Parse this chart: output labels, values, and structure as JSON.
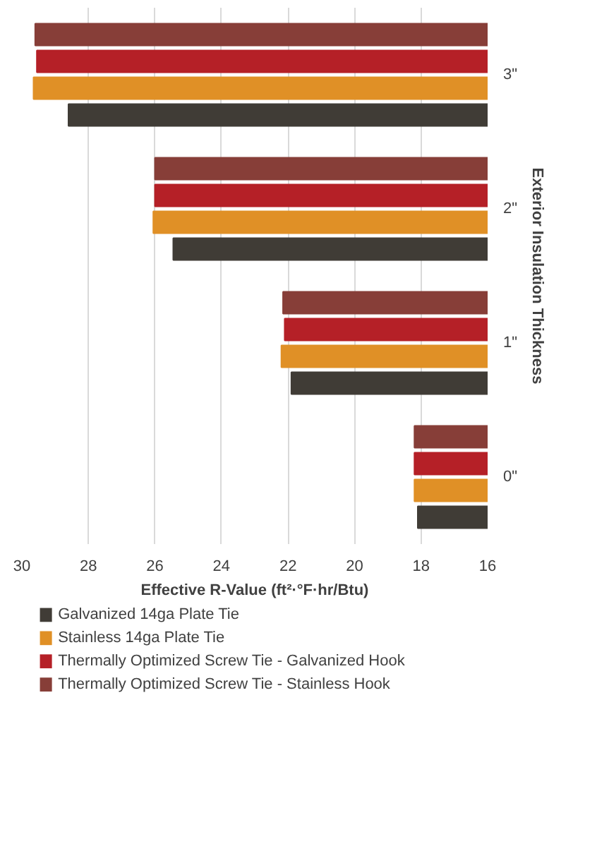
{
  "chart_data": {
    "type": "bar",
    "orientation": "horizontal",
    "xlabel": "Effective R-Value (ft²·°F·hr/Btu)",
    "ylabel": "Exterior Insulation Thickness",
    "categories": [
      "3\"",
      "2\"",
      "1\"",
      "0\""
    ],
    "series": [
      {
        "name": "Galvanized 14ga Plate Tie",
        "color": "#403c36",
        "values": [
          28.6,
          25.45,
          21.9,
          18.1
        ]
      },
      {
        "name": "Stainless 14ga Plate Tie",
        "color": "#e09026",
        "values": [
          29.65,
          26.05,
          22.2,
          18.2
        ]
      },
      {
        "name": "Thermally Optimized Screw Tie - Galvanized Hook",
        "color": "#b52027",
        "values": [
          29.55,
          26.0,
          22.1,
          18.2
        ]
      },
      {
        "name": "Thermally Optimized Screw Tie - Stainless Hook",
        "color": "#873e38",
        "values": [
          29.6,
          26.0,
          22.15,
          18.2
        ]
      }
    ],
    "xlim": [
      30,
      16
    ],
    "xticks": [
      30,
      28,
      26,
      24,
      22,
      20,
      18,
      16
    ],
    "grid": "x",
    "legend": "bottom"
  }
}
